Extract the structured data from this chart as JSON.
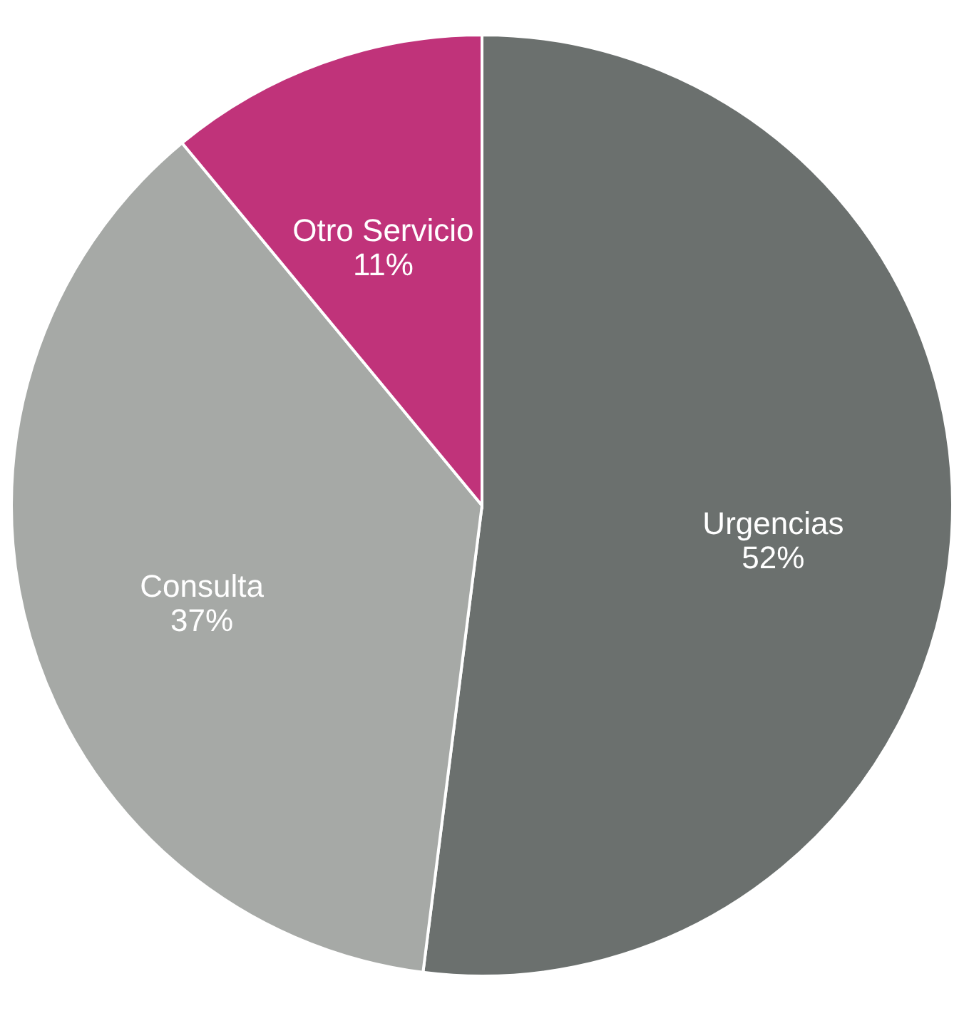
{
  "chart_data": {
    "type": "pie",
    "categories": [
      "Urgencias",
      "Consulta",
      "Otro Servicio"
    ],
    "values": [
      52,
      37,
      11
    ],
    "colors": [
      "#6b706e",
      "#a6a9a6",
      "#c0337a"
    ],
    "value_labels": [
      "52%",
      "37%",
      "11%"
    ],
    "legend": false
  }
}
